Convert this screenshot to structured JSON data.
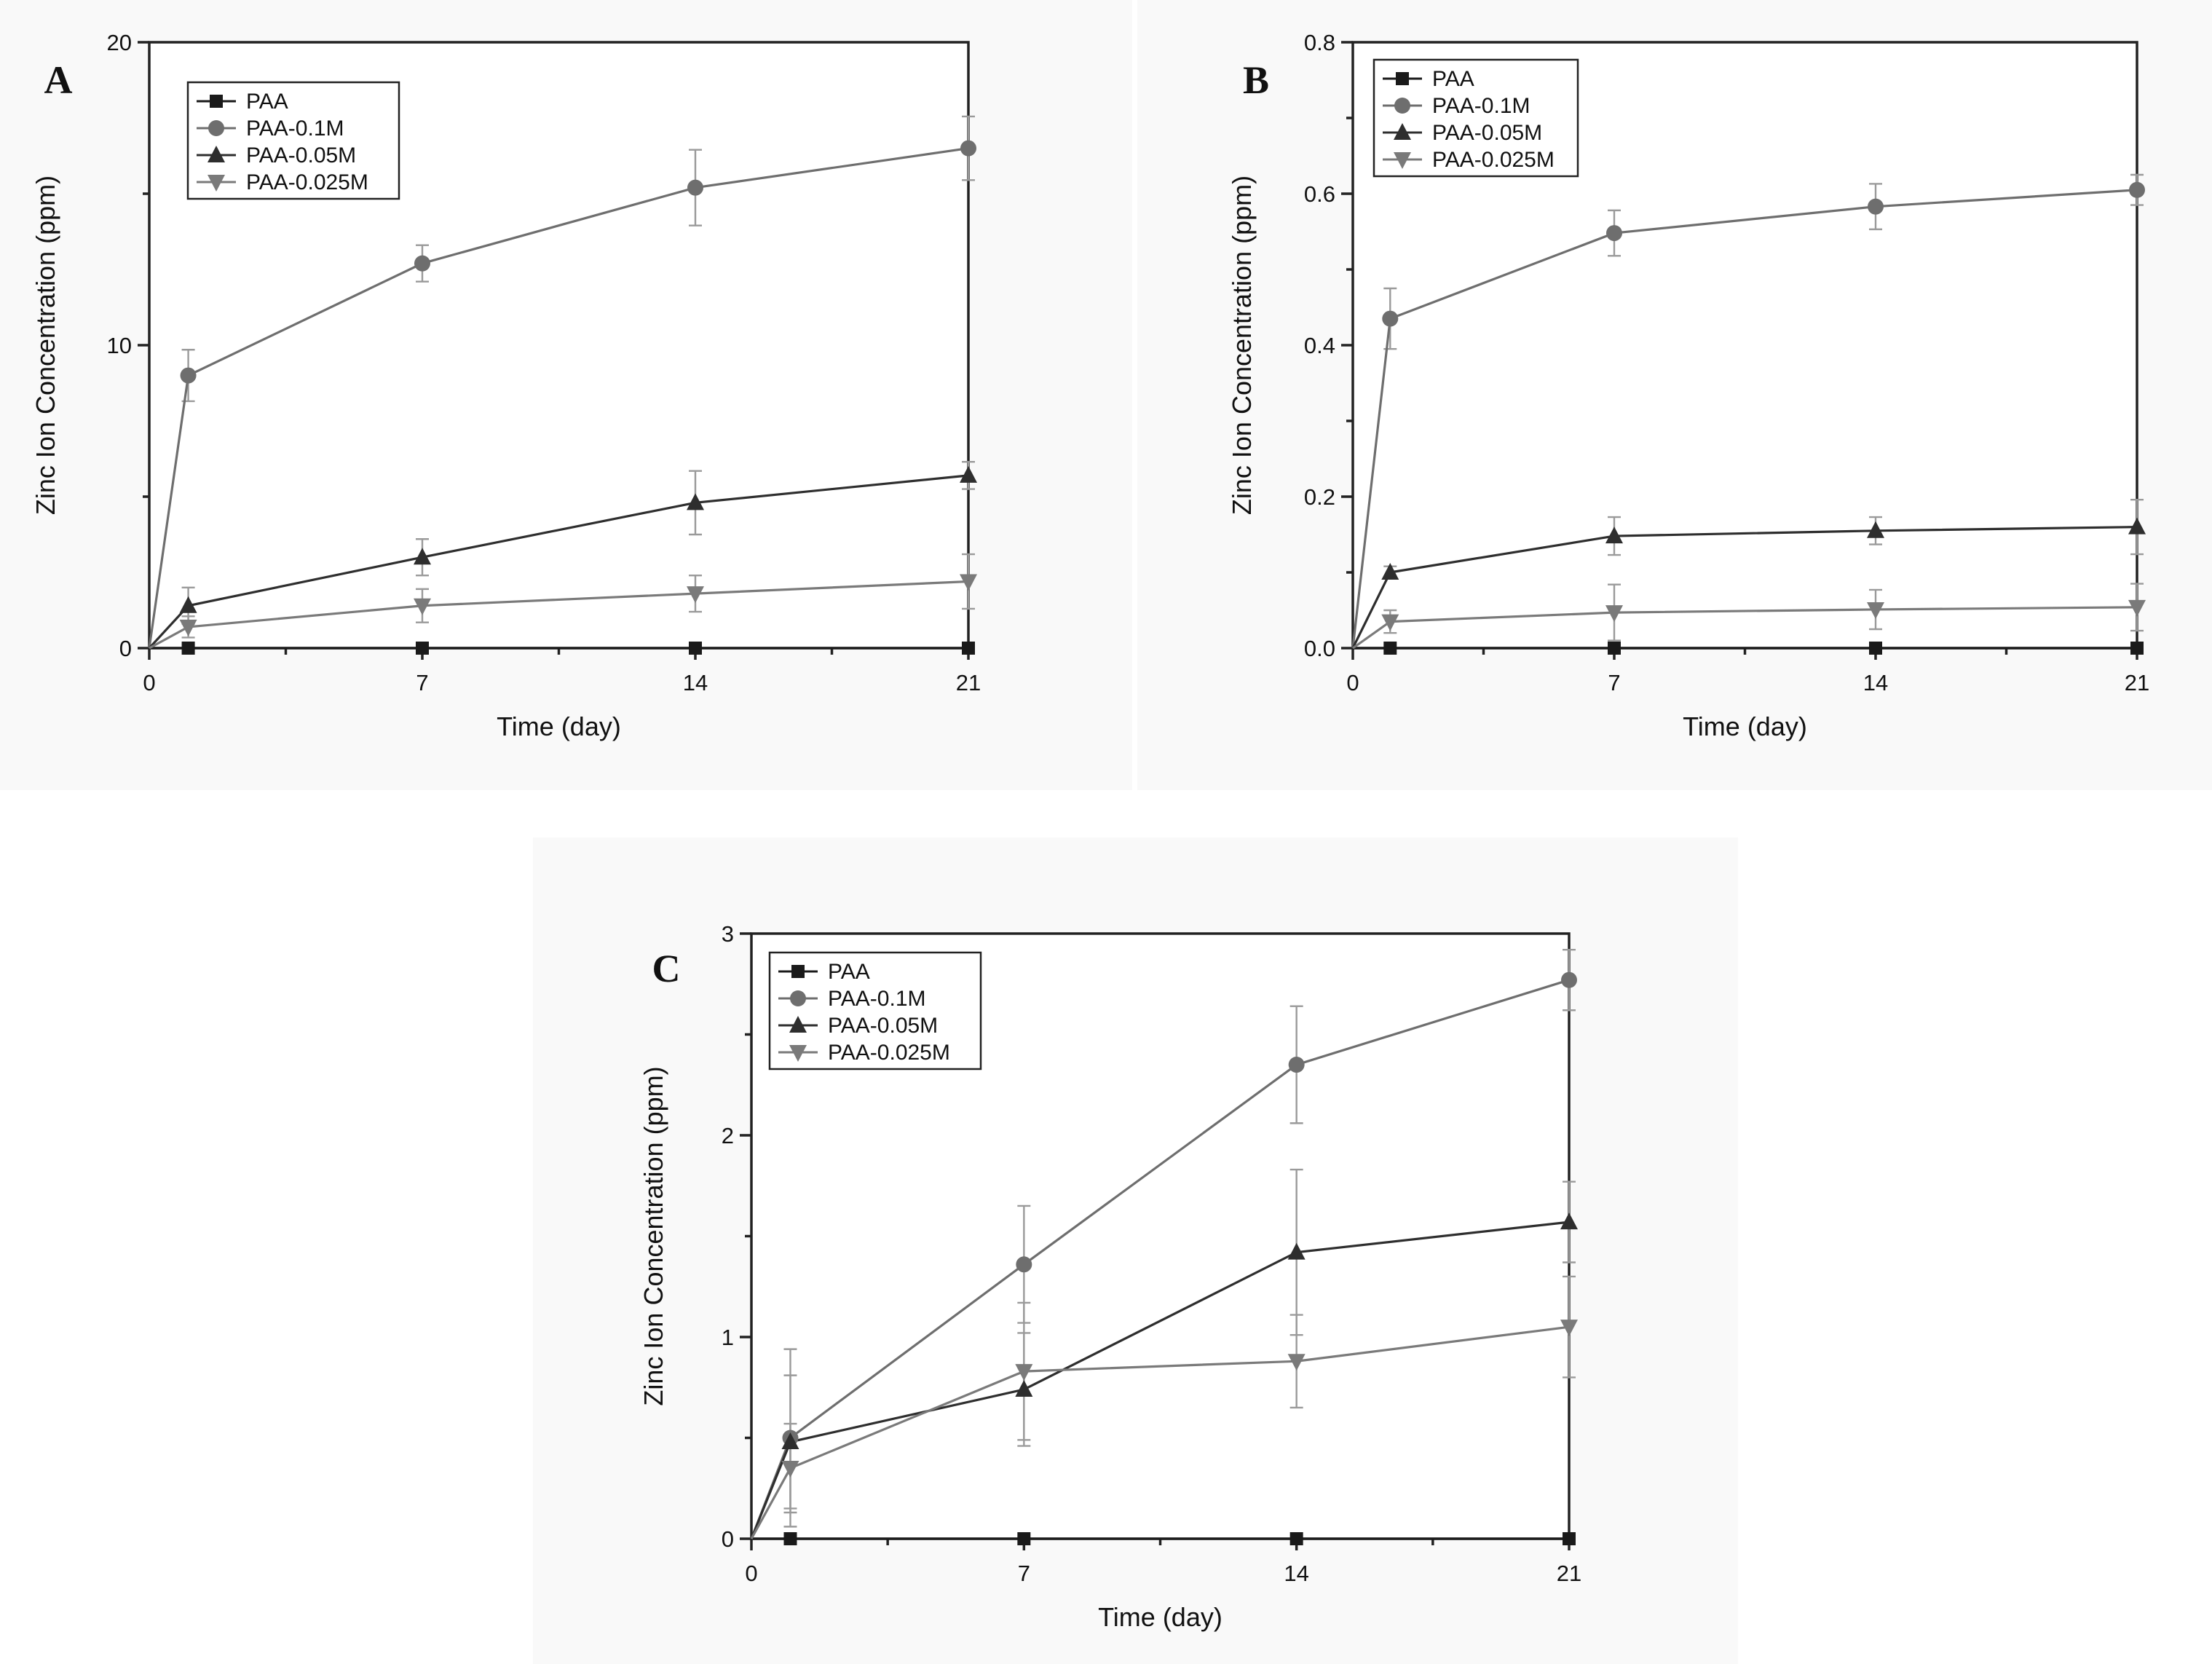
{
  "colors": {
    "PAA": "#1a1a1a",
    "PAA-0.1M": "#6e6e6e",
    "PAA-0.05M": "#2e2e2e",
    "PAA-0.025M": "#7a7a7a",
    "error": "#9a9a9a"
  },
  "chart_data": [
    {
      "type": "line",
      "panel_label": "A",
      "xlabel": "Time (day)",
      "ylabel": "Zinc Ion Concentration (ppm)",
      "xlim": [
        0,
        21
      ],
      "ylim": [
        0,
        20
      ],
      "xticks": [
        0,
        7,
        14,
        21
      ],
      "xtick_labels": [
        "0",
        "7",
        "14",
        "21"
      ],
      "yticks": [
        0,
        10,
        20
      ],
      "ytick_labels": [
        "0",
        "10",
        "20"
      ],
      "legend": [
        "PAA",
        "PAA-0.1M",
        "PAA-0.05M",
        "PAA-0.025M"
      ],
      "series": [
        {
          "name": "PAA",
          "marker": "square",
          "x": [
            0,
            1,
            7,
            14,
            21
          ],
          "values": [
            0,
            0,
            0,
            0,
            0
          ],
          "errors": [
            0,
            0,
            0,
            0,
            0
          ]
        },
        {
          "name": "PAA-0.1M",
          "marker": "circle",
          "x": [
            0,
            1,
            7,
            14,
            21
          ],
          "values": [
            0,
            9.0,
            12.7,
            15.2,
            16.5
          ],
          "errors": [
            0,
            0.85,
            0.6,
            1.25,
            1.05
          ]
        },
        {
          "name": "PAA-0.05M",
          "marker": "triangle-up",
          "x": [
            0,
            1,
            7,
            14,
            21
          ],
          "values": [
            0,
            1.4,
            3.0,
            4.8,
            5.7
          ],
          "errors": [
            0,
            0.6,
            0.6,
            1.05,
            0.45
          ]
        },
        {
          "name": "PAA-0.025M",
          "marker": "triangle-down",
          "x": [
            0,
            1,
            7,
            14,
            21
          ],
          "values": [
            0,
            0.7,
            1.4,
            1.8,
            2.2
          ],
          "errors": [
            0,
            0.35,
            0.55,
            0.6,
            0.9
          ]
        }
      ]
    },
    {
      "type": "line",
      "panel_label": "B",
      "xlabel": "Time (day)",
      "ylabel": "Zinc Ion Concentration (ppm)",
      "xlim": [
        0,
        21
      ],
      "ylim": [
        0,
        0.8
      ],
      "xticks": [
        0,
        7,
        14,
        21
      ],
      "xtick_labels": [
        "0",
        "7",
        "14",
        "21"
      ],
      "yticks": [
        0,
        0.2,
        0.4,
        0.6,
        0.8
      ],
      "ytick_labels": [
        "0.0",
        "0.2",
        "0.4",
        "0.6",
        "0.8"
      ],
      "legend": [
        "PAA",
        "PAA-0.1M",
        "PAA-0.05M",
        "PAA-0.025M"
      ],
      "series": [
        {
          "name": "PAA",
          "marker": "square",
          "x": [
            0,
            1,
            7,
            14,
            21
          ],
          "values": [
            0,
            0,
            0,
            0,
            0
          ],
          "errors": [
            0,
            0,
            0,
            0,
            0
          ]
        },
        {
          "name": "PAA-0.1M",
          "marker": "circle",
          "x": [
            0,
            1,
            7,
            14,
            21
          ],
          "values": [
            0,
            0.435,
            0.548,
            0.583,
            0.605
          ],
          "errors": [
            0,
            0.04,
            0.03,
            0.03,
            0.02
          ]
        },
        {
          "name": "PAA-0.05M",
          "marker": "triangle-up",
          "x": [
            0,
            1,
            7,
            14,
            21
          ],
          "values": [
            0,
            0.1,
            0.148,
            0.155,
            0.16
          ],
          "errors": [
            0,
            0.008,
            0.025,
            0.018,
            0.036
          ]
        },
        {
          "name": "PAA-0.025M",
          "marker": "triangle-down",
          "x": [
            0,
            1,
            7,
            14,
            21
          ],
          "values": [
            0,
            0.035,
            0.047,
            0.051,
            0.054
          ],
          "errors": [
            0,
            0.015,
            0.037,
            0.026,
            0.031
          ]
        }
      ]
    },
    {
      "type": "line",
      "panel_label": "C",
      "xlabel": "Time (day)",
      "ylabel": "Zinc Ion Concentration (ppm)",
      "xlim": [
        0,
        21
      ],
      "ylim": [
        0,
        3
      ],
      "xticks": [
        0,
        7,
        14,
        21
      ],
      "xtick_labels": [
        "0",
        "7",
        "14",
        "21"
      ],
      "yticks": [
        0,
        1,
        2,
        3
      ],
      "ytick_labels": [
        "0",
        "1",
        "2",
        "3"
      ],
      "legend": [
        "PAA",
        "PAA-0.1M",
        "PAA-0.05M",
        "PAA-0.025M"
      ],
      "series": [
        {
          "name": "PAA",
          "marker": "square",
          "x": [
            0,
            1,
            7,
            14,
            21
          ],
          "values": [
            0,
            0,
            0,
            0,
            0
          ],
          "errors": [
            0,
            0,
            0,
            0,
            0
          ]
        },
        {
          "name": "PAA-0.1M",
          "marker": "circle",
          "x": [
            0,
            1,
            7,
            14,
            21
          ],
          "values": [
            0,
            0.5,
            1.36,
            2.35,
            2.77
          ],
          "errors": [
            0,
            0.44,
            0.29,
            0.29,
            0.15
          ]
        },
        {
          "name": "PAA-0.05M",
          "marker": "triangle-up",
          "x": [
            0,
            1,
            7,
            14,
            21
          ],
          "values": [
            0,
            0.48,
            0.74,
            1.42,
            1.57
          ],
          "errors": [
            0,
            0.33,
            0.28,
            0.41,
            0.2
          ]
        },
        {
          "name": "PAA-0.025M",
          "marker": "triangle-down",
          "x": [
            0,
            1,
            7,
            14,
            21
          ],
          "values": [
            0,
            0.35,
            0.83,
            0.88,
            1.05
          ],
          "errors": [
            0,
            0.22,
            0.34,
            0.23,
            0.25
          ]
        }
      ]
    }
  ]
}
